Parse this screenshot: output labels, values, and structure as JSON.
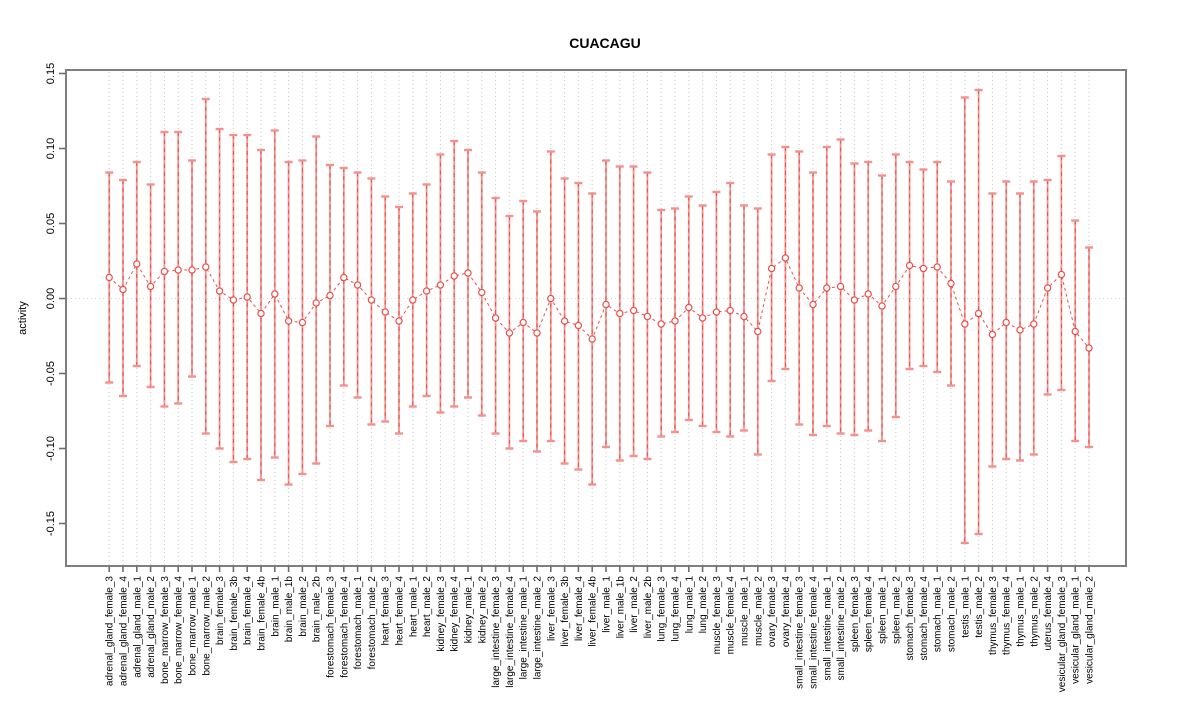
{
  "title": "CUACAGU",
  "ylabel": "activity",
  "colors": {
    "frame": "#7e7e7e",
    "tick": "#6e6e6e",
    "grid": "#c9c9c9",
    "zero_line": "#d8d8d8",
    "stem_solid": "#f5928d",
    "stem_dash": "#e9534d",
    "cap": "#f5908b",
    "point_stroke": "#ee4f49",
    "point_fill": "#ffffff",
    "connector": "#ee4f49",
    "text": "#000000"
  },
  "chart_data": {
    "type": "line",
    "subtype": "error-bar-series",
    "title": "CUACAGU",
    "xlabel": "",
    "ylabel": "activity",
    "ylim": [
      -0.17,
      0.16
    ],
    "grid": "vertical-dotted-plus-zero-line",
    "legend": "none",
    "yticks": [
      0.15,
      0.1,
      0.05,
      0.0,
      -0.05,
      -0.1,
      -0.15
    ],
    "ytick_labels": [
      "0.15",
      "0.10",
      "0.05",
      "0.00",
      "-0.05",
      "-0.10",
      "-0.15"
    ],
    "categories": [
      "adrenal_gland_female_3",
      "adrenal_gland_female_4",
      "adrenal_gland_male_1",
      "adrenal_gland_male_2",
      "bone_marrow_female_3",
      "bone_marrow_female_4",
      "bone_marrow_male_1",
      "bone_marrow_male_2",
      "brain_female_3",
      "brain_female_3b",
      "brain_female_4",
      "brain_female_4b",
      "brain_male_1",
      "brain_male_1b",
      "brain_male_2",
      "brain_male_2b",
      "forestomach_female_3",
      "forestomach_female_4",
      "forestomach_male_1",
      "forestomach_male_2",
      "heart_female_3",
      "heart_female_4",
      "heart_male_1",
      "heart_male_2",
      "kidney_female_3",
      "kidney_female_4",
      "kidney_male_1",
      "kidney_male_2",
      "large_intestine_female_3",
      "large_intestine_female_4",
      "large_intestine_male_1",
      "large_intestine_male_2",
      "liver_female_3",
      "liver_female_3b",
      "liver_female_4",
      "liver_female_4b",
      "liver_male_1",
      "liver_male_1b",
      "liver_male_2",
      "liver_male_2b",
      "lung_female_3",
      "lung_female_4",
      "lung_male_1",
      "lung_male_2",
      "muscle_female_3",
      "muscle_female_4",
      "muscle_male_1",
      "muscle_male_2",
      "ovary_female_3",
      "ovary_female_4",
      "small_intestine_female_3",
      "small_intestine_female_4",
      "small_intestine_male_1",
      "small_intestine_male_2",
      "spleen_female_3",
      "spleen_female_4",
      "spleen_male_1",
      "spleen_male_2",
      "stomach_female_3",
      "stomach_female_4",
      "stomach_male_1",
      "stomach_male_2",
      "testis_male_1",
      "testis_male_2",
      "thymus_female_3",
      "thymus_female_4",
      "thymus_male_1",
      "thymus_male_2",
      "uterus_female_4",
      "vesicular_gland_female_3",
      "vesicular_gland_male_1",
      "vesicular_gland_male_2"
    ],
    "series": [
      {
        "name": "activity",
        "values": [
          0.014,
          0.006,
          0.023,
          0.008,
          0.018,
          0.019,
          0.019,
          0.021,
          0.005,
          -0.001,
          0.001,
          -0.01,
          0.003,
          -0.015,
          -0.016,
          -0.003,
          0.002,
          0.014,
          0.009,
          -0.001,
          -0.009,
          -0.015,
          -0.001,
          0.005,
          0.009,
          0.015,
          0.017,
          0.004,
          -0.013,
          -0.023,
          -0.016,
          -0.023,
          0.0,
          -0.015,
          -0.018,
          -0.027,
          -0.004,
          -0.01,
          -0.008,
          -0.012,
          -0.017,
          -0.015,
          -0.006,
          -0.013,
          -0.009,
          -0.008,
          -0.012,
          -0.022,
          0.02,
          0.027,
          0.007,
          -0.004,
          0.007,
          0.008,
          -0.001,
          0.003,
          -0.005,
          0.008,
          0.022,
          0.02,
          0.021,
          0.01,
          -0.017,
          -0.01,
          -0.024,
          -0.016,
          -0.021,
          -0.017,
          0.007,
          0.016,
          -0.022,
          -0.033
        ],
        "lower": [
          -0.056,
          -0.065,
          -0.045,
          -0.059,
          -0.072,
          -0.07,
          -0.052,
          -0.09,
          -0.1,
          -0.109,
          -0.107,
          -0.121,
          -0.106,
          -0.124,
          -0.117,
          -0.11,
          -0.085,
          -0.058,
          -0.066,
          -0.084,
          -0.082,
          -0.09,
          -0.072,
          -0.065,
          -0.076,
          -0.072,
          -0.066,
          -0.078,
          -0.09,
          -0.1,
          -0.095,
          -0.102,
          -0.095,
          -0.11,
          -0.114,
          -0.124,
          -0.099,
          -0.108,
          -0.105,
          -0.107,
          -0.092,
          -0.089,
          -0.081,
          -0.085,
          -0.089,
          -0.092,
          -0.088,
          -0.104,
          -0.055,
          -0.047,
          -0.084,
          -0.091,
          -0.085,
          -0.09,
          -0.091,
          -0.088,
          -0.095,
          -0.079,
          -0.047,
          -0.045,
          -0.049,
          -0.058,
          -0.163,
          -0.157,
          -0.112,
          -0.107,
          -0.108,
          -0.104,
          -0.064,
          -0.061,
          -0.095,
          -0.099
        ],
        "upper": [
          0.084,
          0.079,
          0.091,
          0.076,
          0.111,
          0.111,
          0.092,
          0.133,
          0.113,
          0.109,
          0.109,
          0.099,
          0.112,
          0.091,
          0.092,
          0.108,
          0.089,
          0.087,
          0.084,
          0.08,
          0.068,
          0.061,
          0.07,
          0.076,
          0.096,
          0.105,
          0.099,
          0.084,
          0.067,
          0.055,
          0.065,
          0.058,
          0.098,
          0.08,
          0.077,
          0.07,
          0.092,
          0.088,
          0.088,
          0.084,
          0.059,
          0.06,
          0.068,
          0.062,
          0.071,
          0.077,
          0.062,
          0.06,
          0.096,
          0.101,
          0.098,
          0.084,
          0.101,
          0.106,
          0.09,
          0.091,
          0.082,
          0.096,
          0.091,
          0.086,
          0.091,
          0.078,
          0.134,
          0.139,
          0.07,
          0.078,
          0.07,
          0.078,
          0.079,
          0.095,
          0.052,
          0.034
        ]
      }
    ]
  }
}
